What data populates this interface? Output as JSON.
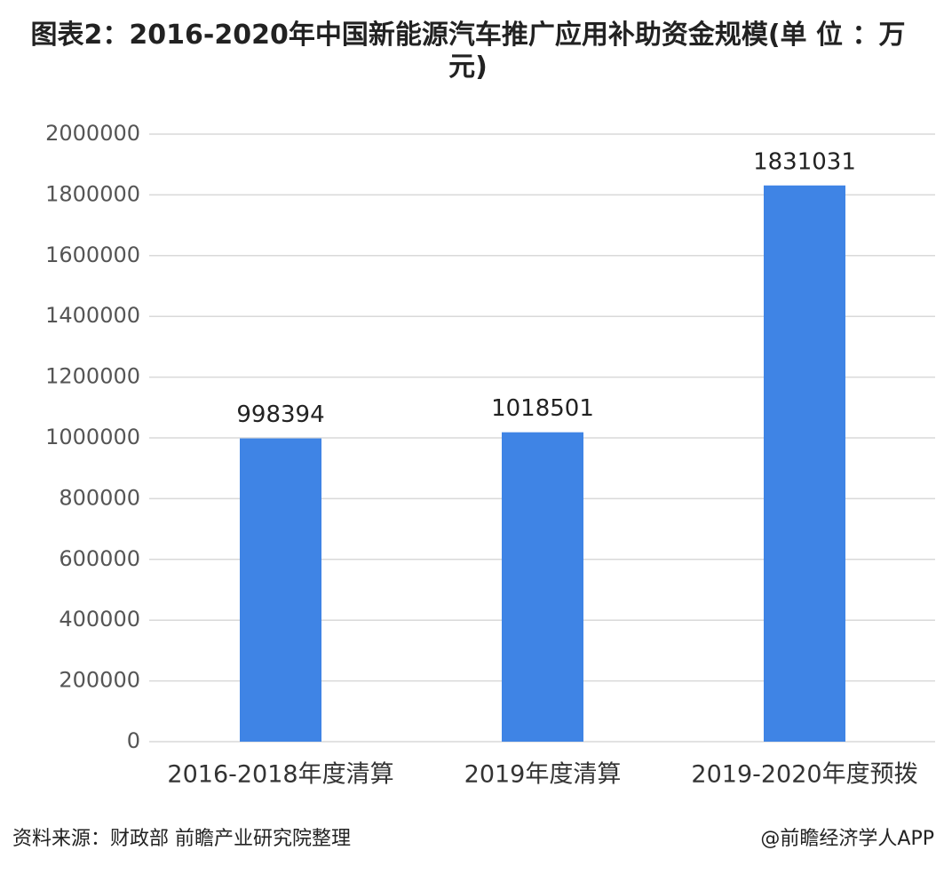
{
  "chart_data": {
    "type": "bar",
    "title": "图表2：2016-2020年中国新能源汽车推广应用补助资金规模(单 位 ：万元)",
    "source": "资料来源：财政部 前瞻产业研究院整理",
    "credit": "@前瞻经济学人APP",
    "categories": [
      "2016-2018年度清算",
      "2019年度清算",
      "2019-2020年度预拨"
    ],
    "values": [
      998394,
      1018501,
      1831031
    ],
    "color": "#3f84e5",
    "ylim": [
      0,
      2000000
    ],
    "yticks": [
      0,
      200000,
      400000,
      600000,
      800000,
      1000000,
      1200000,
      1400000,
      1600000,
      1800000,
      2000000
    ],
    "grid": true
  }
}
